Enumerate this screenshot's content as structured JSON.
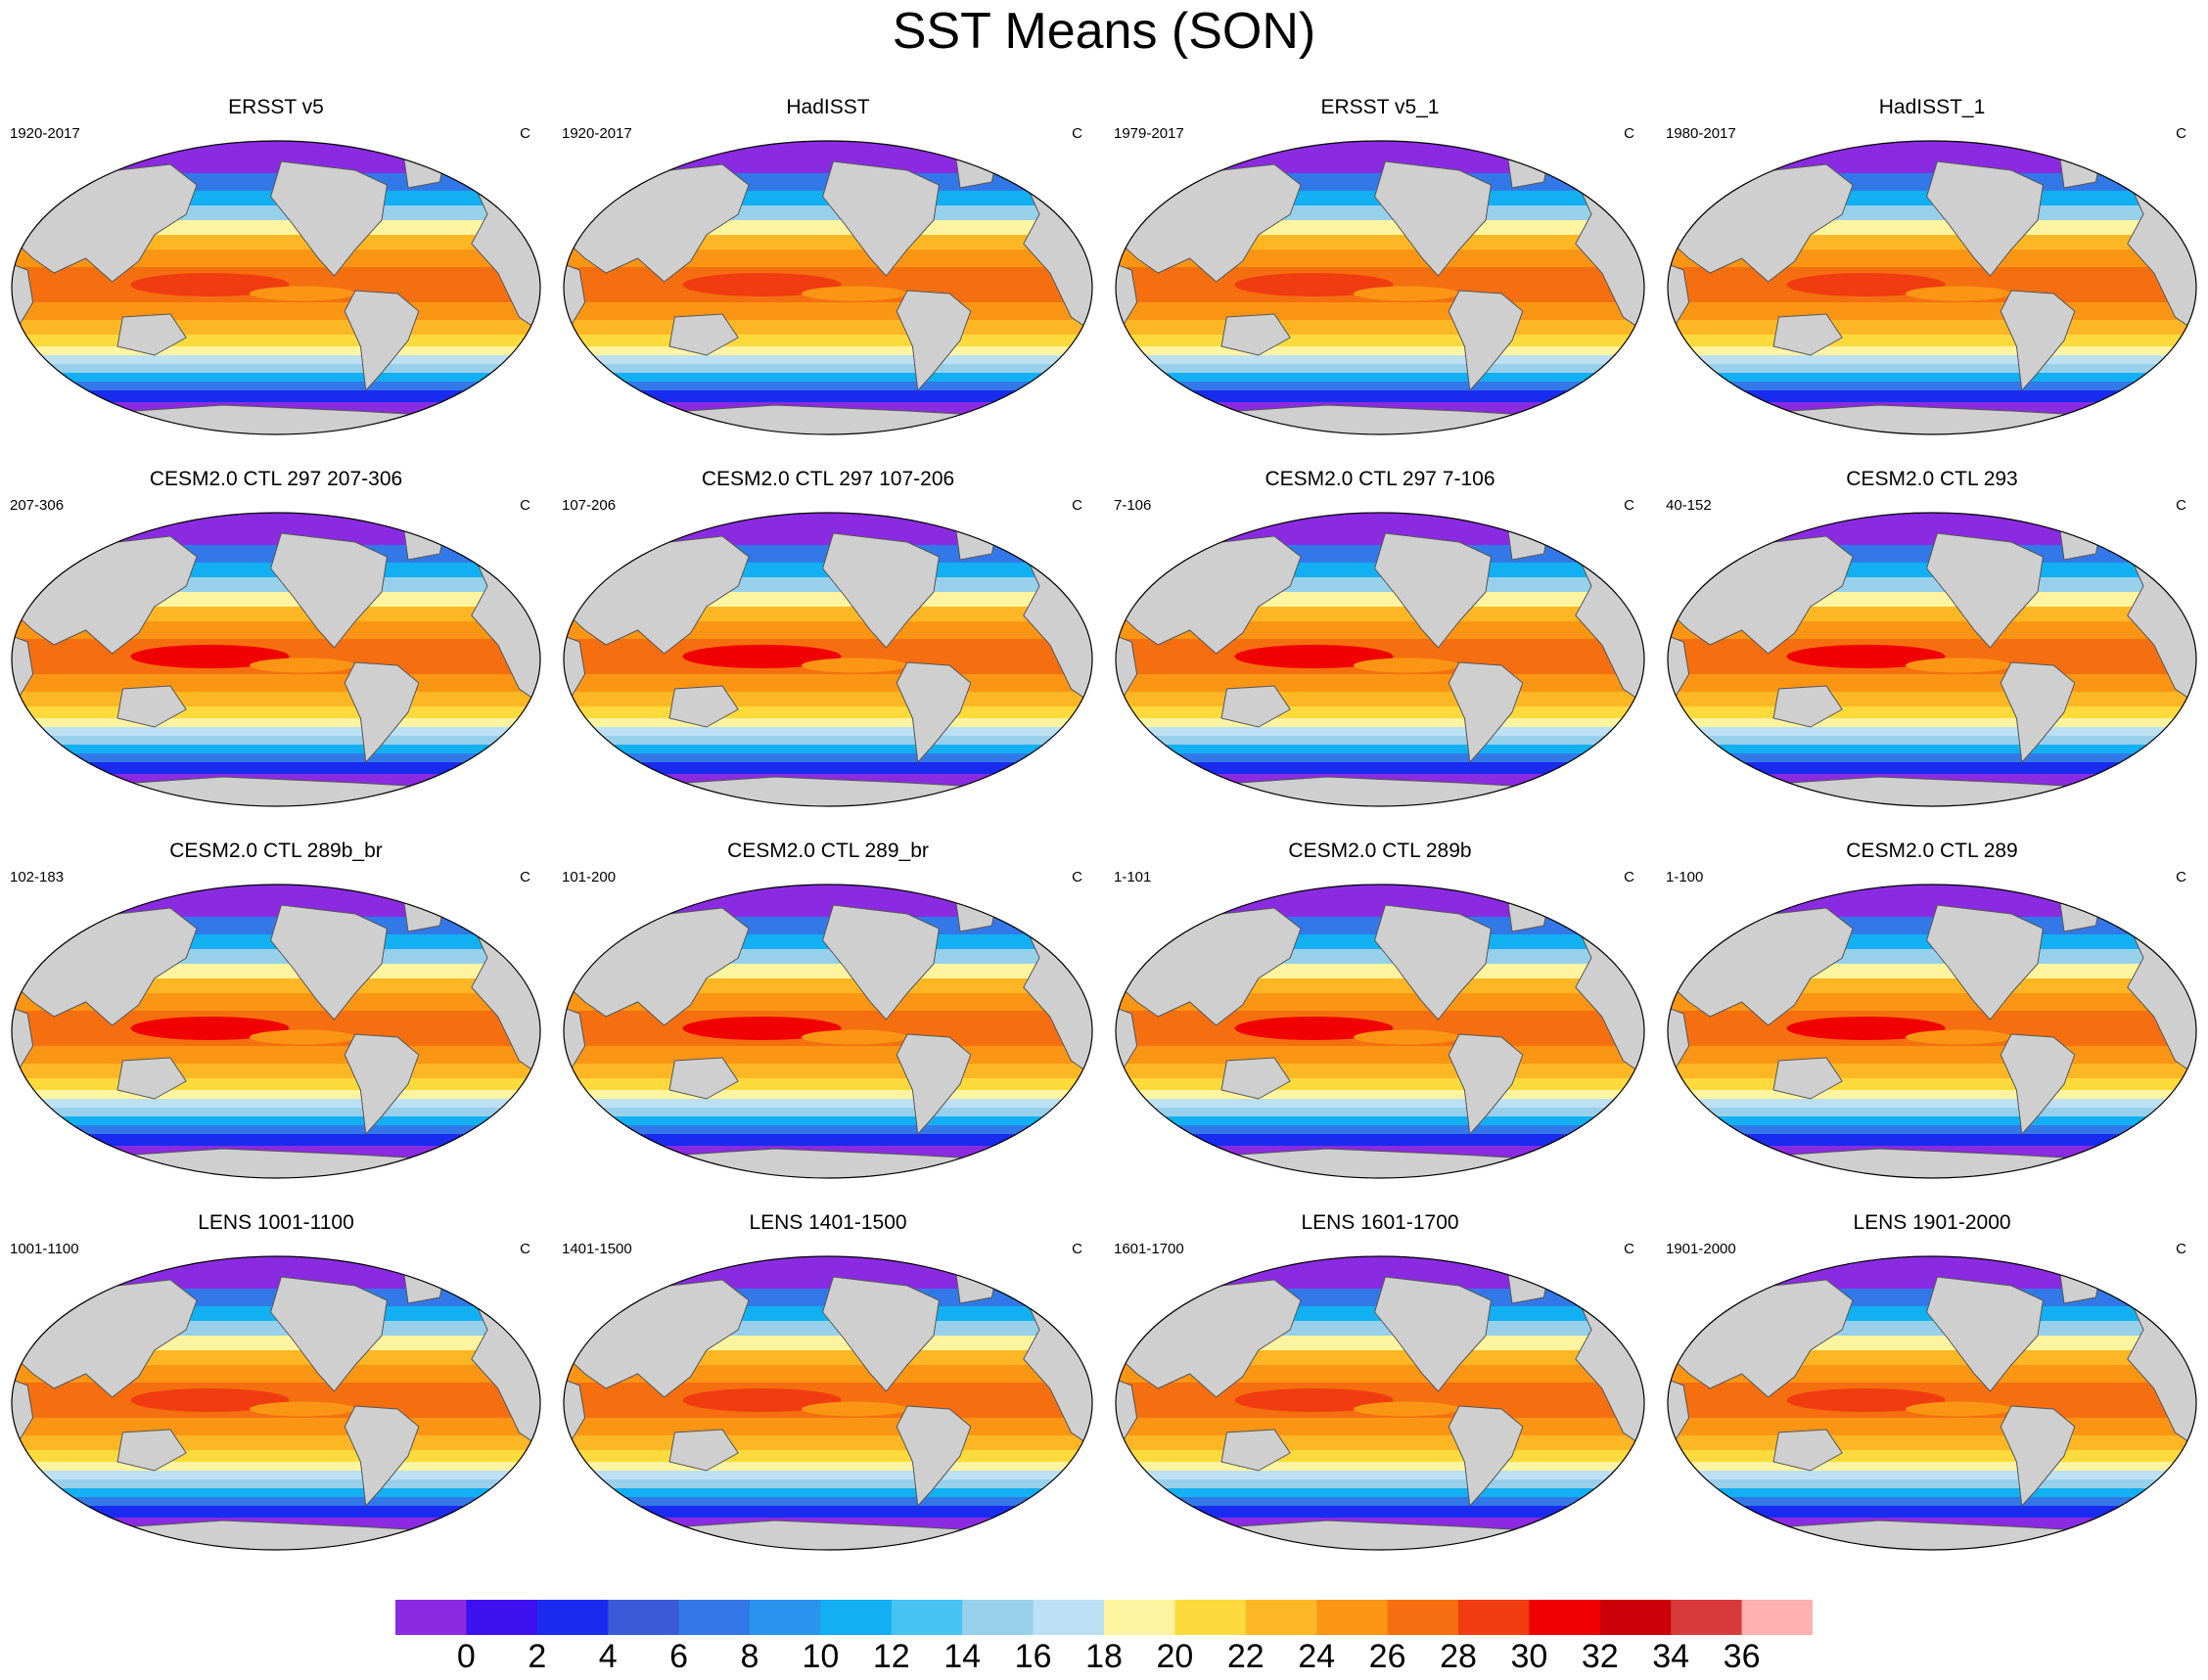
{
  "figure": {
    "title": "SST Means (SON)",
    "unit": "C"
  },
  "chart_data": {
    "type": "heatmap",
    "title": "SST Means (SON)",
    "variable": "Sea surface temperature, seasonal mean (SON)",
    "map_projection": "global ellipse (Robinson-like), Pacific-centred",
    "layout": "4 rows x 4 columns",
    "colorbar": {
      "levels": [
        0,
        2,
        4,
        6,
        8,
        10,
        12,
        14,
        16,
        18,
        20,
        22,
        24,
        26,
        28,
        30,
        32,
        34,
        36
      ],
      "colors": [
        "#8a2be2",
        "#3d10f0",
        "#1a2bf0",
        "#3a5ad8",
        "#3378e8",
        "#2a93ee",
        "#12b0f2",
        "#47c2f2",
        "#98d0ec",
        "#bde0f5",
        "#fff5a0",
        "#fedb3c",
        "#fdb725",
        "#fb9614",
        "#f56f10",
        "#f03c10",
        "#f00000",
        "#cc0008",
        "#d83a3a",
        "#ffb0b0"
      ],
      "orientation": "horizontal",
      "placement": "bottom"
    },
    "panels": [
      {
        "title": "ERSST v5",
        "period": "1920-2017",
        "unit": "C",
        "warm_pool_max_level": 28
      },
      {
        "title": "HadISST",
        "period": "1920-2017",
        "unit": "C",
        "warm_pool_max_level": 28
      },
      {
        "title": "ERSST v5_1",
        "period": "1979-2017",
        "unit": "C",
        "warm_pool_max_level": 28
      },
      {
        "title": "HadISST_1",
        "period": "1980-2017",
        "unit": "C",
        "warm_pool_max_level": 28
      },
      {
        "title": "CESM2.0 CTL 297 207-306",
        "period": "207-306",
        "unit": "C",
        "warm_pool_max_level": 30
      },
      {
        "title": "CESM2.0 CTL 297 107-206",
        "period": "107-206",
        "unit": "C",
        "warm_pool_max_level": 30
      },
      {
        "title": "CESM2.0 CTL 297 7-106",
        "period": "7-106",
        "unit": "C",
        "warm_pool_max_level": 30
      },
      {
        "title": "CESM2.0 CTL 293",
        "period": "40-152",
        "unit": "C",
        "warm_pool_max_level": 30
      },
      {
        "title": "CESM2.0 CTL 289b_br",
        "period": "102-183",
        "unit": "C",
        "warm_pool_max_level": 30
      },
      {
        "title": "CESM2.0 CTL 289_br",
        "period": "101-200",
        "unit": "C",
        "warm_pool_max_level": 30
      },
      {
        "title": "CESM2.0 CTL 289b",
        "period": "1-101",
        "unit": "C",
        "warm_pool_max_level": 30
      },
      {
        "title": "CESM2.0 CTL 289",
        "period": "1-100",
        "unit": "C",
        "warm_pool_max_level": 30
      },
      {
        "title": "LENS 1001-1100",
        "period": "1001-1100",
        "unit": "C",
        "warm_pool_max_level": 28
      },
      {
        "title": "LENS 1401-1500",
        "period": "1401-1500",
        "unit": "C",
        "warm_pool_max_level": 28
      },
      {
        "title": "LENS 1601-1700",
        "period": "1601-1700",
        "unit": "C",
        "warm_pool_max_level": 28
      },
      {
        "title": "LENS 1901-2000",
        "period": "1901-2000",
        "unit": "C",
        "warm_pool_max_level": 28
      }
    ]
  }
}
